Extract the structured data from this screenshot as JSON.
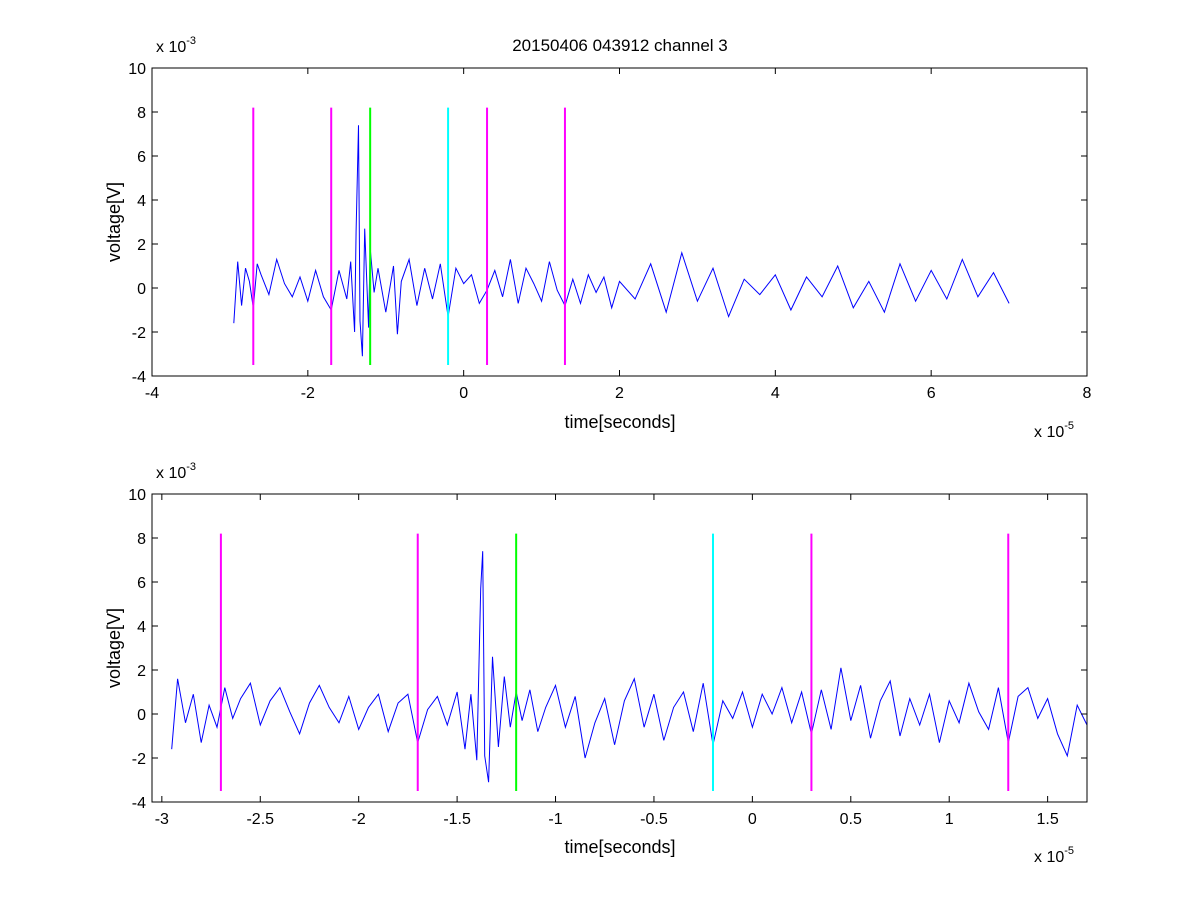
{
  "chart_data": [
    {
      "type": "line",
      "title": "20150406 043912 channel 3",
      "xlabel": "time[seconds]",
      "ylabel": "voltage[V]",
      "x_multiplier": {
        "base": "x 10",
        "exponent": "-5"
      },
      "y_multiplier": {
        "base": "x 10",
        "exponent": "-3"
      },
      "xlim": [
        -4,
        8
      ],
      "ylim": [
        -4,
        10
      ],
      "xticks": [
        "-4",
        "-2",
        "0",
        "2",
        "4",
        "6",
        "8"
      ],
      "xtick_values": [
        -4,
        -2,
        0,
        2,
        4,
        6,
        8
      ],
      "yticks": [
        "-4",
        "-2",
        "0",
        "2",
        "4",
        "6",
        "8",
        "10"
      ],
      "ytick_values": [
        -4,
        -2,
        0,
        2,
        4,
        6,
        8,
        10
      ],
      "grid": false,
      "signal": {
        "color": "#0000ff",
        "x_range": [
          -2.95,
          7.0
        ],
        "points": [
          [
            -2.95,
            -1.6
          ],
          [
            -2.9,
            1.2
          ],
          [
            -2.85,
            -0.8
          ],
          [
            -2.8,
            0.9
          ],
          [
            -2.75,
            0.3
          ],
          [
            -2.7,
            -0.9
          ],
          [
            -2.65,
            1.1
          ],
          [
            -2.6,
            0.6
          ],
          [
            -2.5,
            -0.3
          ],
          [
            -2.4,
            1.3
          ],
          [
            -2.3,
            0.2
          ],
          [
            -2.2,
            -0.4
          ],
          [
            -2.1,
            0.5
          ],
          [
            -2.0,
            -0.6
          ],
          [
            -1.9,
            0.8
          ],
          [
            -1.8,
            -0.4
          ],
          [
            -1.7,
            -1.0
          ],
          [
            -1.6,
            0.8
          ],
          [
            -1.5,
            -0.5
          ],
          [
            -1.45,
            1.2
          ],
          [
            -1.4,
            -2.0
          ],
          [
            -1.38,
            2.6
          ],
          [
            -1.35,
            7.4
          ],
          [
            -1.33,
            -1.5
          ],
          [
            -1.3,
            -3.1
          ],
          [
            -1.27,
            2.7
          ],
          [
            -1.22,
            -1.8
          ],
          [
            -1.2,
            1.8
          ],
          [
            -1.15,
            -0.2
          ],
          [
            -1.1,
            0.9
          ],
          [
            -1.0,
            -1.1
          ],
          [
            -0.9,
            1.0
          ],
          [
            -0.85,
            -2.1
          ],
          [
            -0.8,
            0.3
          ],
          [
            -0.7,
            1.3
          ],
          [
            -0.6,
            -0.8
          ],
          [
            -0.5,
            0.9
          ],
          [
            -0.4,
            -0.5
          ],
          [
            -0.3,
            1.1
          ],
          [
            -0.2,
            -1.3
          ],
          [
            -0.1,
            0.9
          ],
          [
            0.0,
            0.2
          ],
          [
            0.1,
            0.6
          ],
          [
            0.2,
            -0.7
          ],
          [
            0.3,
            -0.1
          ],
          [
            0.4,
            0.8
          ],
          [
            0.5,
            -0.4
          ],
          [
            0.6,
            1.3
          ],
          [
            0.7,
            -0.7
          ],
          [
            0.8,
            0.9
          ],
          [
            0.9,
            0.2
          ],
          [
            1.0,
            -0.6
          ],
          [
            1.1,
            1.2
          ],
          [
            1.2,
            -0.1
          ],
          [
            1.3,
            -0.8
          ],
          [
            1.4,
            0.4
          ],
          [
            1.5,
            -0.7
          ],
          [
            1.6,
            0.6
          ],
          [
            1.7,
            -0.2
          ],
          [
            1.8,
            0.5
          ],
          [
            1.9,
            -0.9
          ],
          [
            2.0,
            0.3
          ],
          [
            2.2,
            -0.5
          ],
          [
            2.4,
            1.1
          ],
          [
            2.6,
            -1.1
          ],
          [
            2.8,
            1.6
          ],
          [
            3.0,
            -0.6
          ],
          [
            3.2,
            0.9
          ],
          [
            3.4,
            -1.3
          ],
          [
            3.6,
            0.4
          ],
          [
            3.8,
            -0.3
          ],
          [
            4.0,
            0.6
          ],
          [
            4.2,
            -1.0
          ],
          [
            4.4,
            0.5
          ],
          [
            4.6,
            -0.4
          ],
          [
            4.8,
            1.0
          ],
          [
            5.0,
            -0.9
          ],
          [
            5.2,
            0.3
          ],
          [
            5.4,
            -1.1
          ],
          [
            5.6,
            1.1
          ],
          [
            5.8,
            -0.6
          ],
          [
            6.0,
            0.8
          ],
          [
            6.2,
            -0.5
          ],
          [
            6.4,
            1.3
          ],
          [
            6.6,
            -0.4
          ],
          [
            6.8,
            0.7
          ],
          [
            7.0,
            -0.7
          ]
        ]
      },
      "markers": [
        {
          "x": -2.7,
          "color": "#ff00ff",
          "ymin": -3.5,
          "ymax": 8.2
        },
        {
          "x": -1.7,
          "color": "#ff00ff",
          "ymin": -3.5,
          "ymax": 8.2
        },
        {
          "x": -1.2,
          "color": "#00ff00",
          "ymin": -3.5,
          "ymax": 8.2
        },
        {
          "x": -0.2,
          "color": "#00ffff",
          "ymin": -3.5,
          "ymax": 8.2
        },
        {
          "x": 0.3,
          "color": "#ff00ff",
          "ymin": -3.5,
          "ymax": 8.2
        },
        {
          "x": 1.3,
          "color": "#ff00ff",
          "ymin": -3.5,
          "ymax": 8.2
        }
      ]
    },
    {
      "type": "line",
      "title": "",
      "xlabel": "time[seconds]",
      "ylabel": "voltage[V]",
      "x_multiplier": {
        "base": "x 10",
        "exponent": "-5"
      },
      "y_multiplier": {
        "base": "x 10",
        "exponent": "-3"
      },
      "xlim": [
        -3.05,
        1.7
      ],
      "ylim": [
        -4,
        10
      ],
      "xticks": [
        "-3",
        "-2.5",
        "-2",
        "-1.5",
        "-1",
        "-0.5",
        "0",
        "0.5",
        "1",
        "1.5"
      ],
      "xtick_values": [
        -3,
        -2.5,
        -2,
        -1.5,
        -1,
        -0.5,
        0,
        0.5,
        1,
        1.5
      ],
      "yticks": [
        "-4",
        "-2",
        "0",
        "2",
        "4",
        "6",
        "8",
        "10"
      ],
      "ytick_values": [
        -4,
        -2,
        0,
        2,
        4,
        6,
        8,
        10
      ],
      "grid": false,
      "signal": {
        "color": "#0000ff",
        "x_range": [
          -2.95,
          1.7
        ],
        "points": [
          [
            -2.95,
            -1.6
          ],
          [
            -2.92,
            1.6
          ],
          [
            -2.88,
            -0.4
          ],
          [
            -2.84,
            0.9
          ],
          [
            -2.8,
            -1.3
          ],
          [
            -2.76,
            0.4
          ],
          [
            -2.72,
            -0.6
          ],
          [
            -2.68,
            1.2
          ],
          [
            -2.64,
            -0.2
          ],
          [
            -2.6,
            0.7
          ],
          [
            -2.55,
            1.4
          ],
          [
            -2.5,
            -0.5
          ],
          [
            -2.45,
            0.6
          ],
          [
            -2.4,
            1.2
          ],
          [
            -2.35,
            0.1
          ],
          [
            -2.3,
            -0.9
          ],
          [
            -2.25,
            0.5
          ],
          [
            -2.2,
            1.3
          ],
          [
            -2.15,
            0.3
          ],
          [
            -2.1,
            -0.4
          ],
          [
            -2.05,
            0.8
          ],
          [
            -2.0,
            -0.7
          ],
          [
            -1.95,
            0.3
          ],
          [
            -1.9,
            0.9
          ],
          [
            -1.85,
            -0.8
          ],
          [
            -1.8,
            0.5
          ],
          [
            -1.75,
            0.9
          ],
          [
            -1.7,
            -1.3
          ],
          [
            -1.65,
            0.2
          ],
          [
            -1.6,
            0.8
          ],
          [
            -1.55,
            -0.5
          ],
          [
            -1.5,
            1.0
          ],
          [
            -1.46,
            -1.6
          ],
          [
            -1.43,
            0.9
          ],
          [
            -1.4,
            -2.1
          ],
          [
            -1.38,
            5.7
          ],
          [
            -1.37,
            7.4
          ],
          [
            -1.36,
            -1.9
          ],
          [
            -1.34,
            -3.1
          ],
          [
            -1.32,
            2.6
          ],
          [
            -1.29,
            -1.5
          ],
          [
            -1.26,
            1.7
          ],
          [
            -1.23,
            -0.6
          ],
          [
            -1.2,
            1.0
          ],
          [
            -1.17,
            -0.3
          ],
          [
            -1.13,
            1.1
          ],
          [
            -1.09,
            -0.8
          ],
          [
            -1.05,
            0.3
          ],
          [
            -1.0,
            1.3
          ],
          [
            -0.95,
            -0.6
          ],
          [
            -0.9,
            0.8
          ],
          [
            -0.85,
            -2.0
          ],
          [
            -0.8,
            -0.4
          ],
          [
            -0.75,
            0.7
          ],
          [
            -0.7,
            -1.4
          ],
          [
            -0.65,
            0.6
          ],
          [
            -0.6,
            1.6
          ],
          [
            -0.55,
            -0.6
          ],
          [
            -0.5,
            0.9
          ],
          [
            -0.45,
            -1.2
          ],
          [
            -0.4,
            0.3
          ],
          [
            -0.35,
            1.0
          ],
          [
            -0.3,
            -0.8
          ],
          [
            -0.25,
            1.4
          ],
          [
            -0.2,
            -1.4
          ],
          [
            -0.15,
            0.6
          ],
          [
            -0.1,
            -0.2
          ],
          [
            -0.05,
            1.0
          ],
          [
            0.0,
            -0.6
          ],
          [
            0.05,
            0.9
          ],
          [
            0.1,
            0.0
          ],
          [
            0.15,
            1.2
          ],
          [
            0.2,
            -0.4
          ],
          [
            0.25,
            1.0
          ],
          [
            0.3,
            -0.9
          ],
          [
            0.35,
            1.1
          ],
          [
            0.4,
            -0.7
          ],
          [
            0.45,
            2.1
          ],
          [
            0.5,
            -0.3
          ],
          [
            0.55,
            1.3
          ],
          [
            0.6,
            -1.1
          ],
          [
            0.65,
            0.6
          ],
          [
            0.7,
            1.5
          ],
          [
            0.75,
            -1.0
          ],
          [
            0.8,
            0.7
          ],
          [
            0.85,
            -0.5
          ],
          [
            0.9,
            0.9
          ],
          [
            0.95,
            -1.3
          ],
          [
            1.0,
            0.6
          ],
          [
            1.05,
            -0.4
          ],
          [
            1.1,
            1.4
          ],
          [
            1.15,
            0.1
          ],
          [
            1.2,
            -0.7
          ],
          [
            1.25,
            1.2
          ],
          [
            1.3,
            -1.3
          ],
          [
            1.35,
            0.8
          ],
          [
            1.4,
            1.2
          ],
          [
            1.45,
            -0.2
          ],
          [
            1.5,
            0.7
          ],
          [
            1.55,
            -0.9
          ],
          [
            1.6,
            -1.9
          ],
          [
            1.65,
            0.4
          ],
          [
            1.7,
            -0.5
          ]
        ]
      },
      "markers": [
        {
          "x": -2.7,
          "color": "#ff00ff",
          "ymin": -3.5,
          "ymax": 8.2
        },
        {
          "x": -1.7,
          "color": "#ff00ff",
          "ymin": -3.5,
          "ymax": 8.2
        },
        {
          "x": -1.2,
          "color": "#00ff00",
          "ymin": -3.5,
          "ymax": 8.2
        },
        {
          "x": -0.2,
          "color": "#00ffff",
          "ymin": -3.5,
          "ymax": 8.2
        },
        {
          "x": 0.3,
          "color": "#ff00ff",
          "ymin": -3.5,
          "ymax": 8.2
        },
        {
          "x": 1.3,
          "color": "#ff00ff",
          "ymin": -3.5,
          "ymax": 8.2
        }
      ]
    }
  ]
}
